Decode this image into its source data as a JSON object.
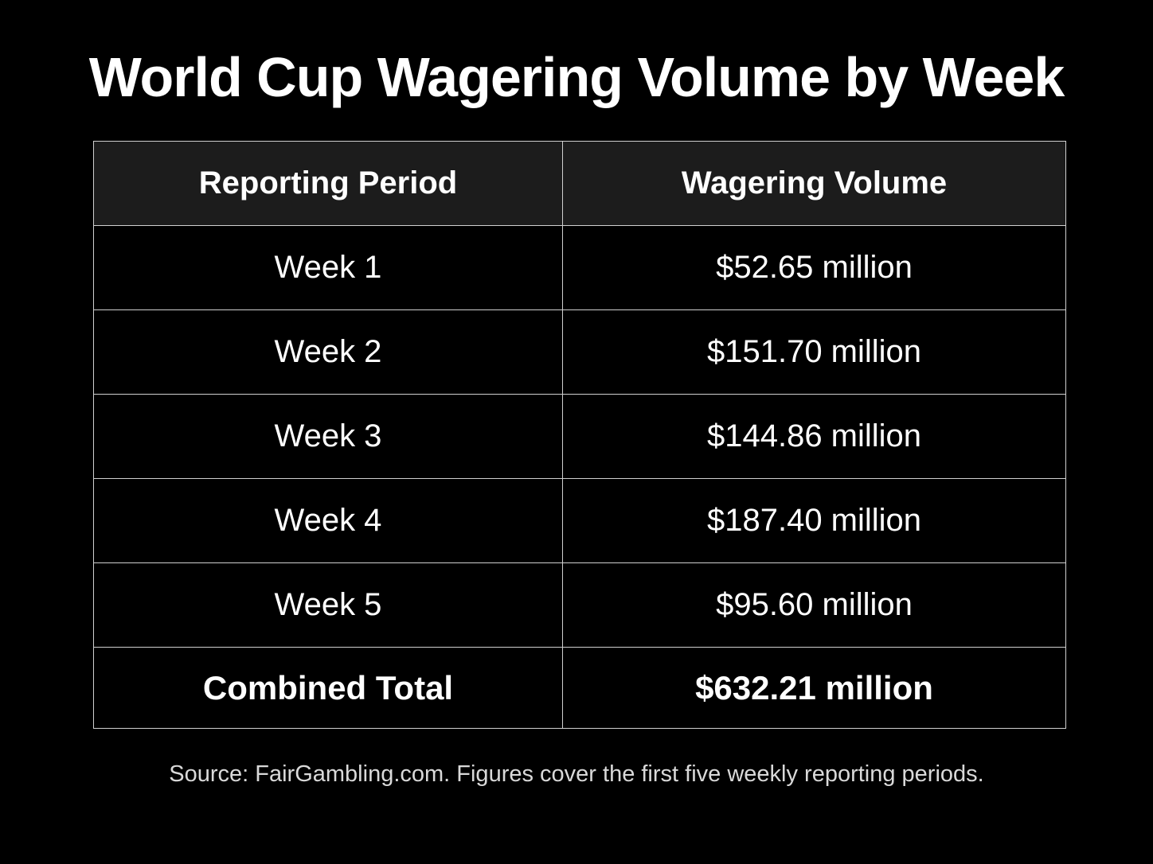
{
  "chart_data": {
    "type": "table",
    "title": "World Cup Wagering Volume by Week",
    "columns": [
      "Reporting Period",
      "Wagering Volume"
    ],
    "rows": [
      {
        "period": "Week 1",
        "volume": "$52.65 million",
        "value": 52.65
      },
      {
        "period": "Week 2",
        "volume": "$151.70 million",
        "value": 151.7
      },
      {
        "period": "Week 3",
        "volume": "$144.86 million",
        "value": 144.86
      },
      {
        "period": "Week 4",
        "volume": "$187.40 million",
        "value": 187.4
      },
      {
        "period": "Week 5",
        "volume": "$95.60 million",
        "value": 95.6
      }
    ],
    "total": {
      "label": "Combined Total",
      "volume": "$632.21 million",
      "value": 632.21
    },
    "source": "Source: FairGambling.com. Figures cover the first five weekly reporting periods."
  },
  "colors": {
    "background": "#000000",
    "header_background": "#1c1c1c",
    "text": "#ffffff",
    "border": "#d0d0d0",
    "source_text": "#d9d9d9"
  }
}
